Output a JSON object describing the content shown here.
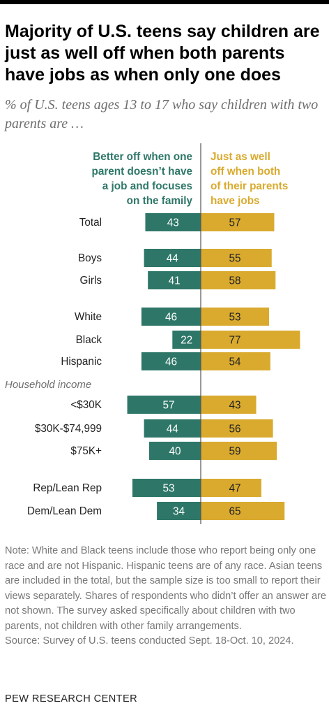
{
  "title": "Majority of U.S. teens say children are just as well off when both parents have jobs as when only one does",
  "subtitle": "% of U.S. teens ages 13 to 17 who say children with two parents are …",
  "chart_data": {
    "type": "bar",
    "orientation": "diverging-horizontal",
    "legend_left": [
      "Better off when one",
      "parent doesn’t have",
      "a job and focuses",
      "on the family"
    ],
    "legend_right": [
      "Just as well",
      "off when both",
      "of their parents",
      "have jobs"
    ],
    "group_labels": [
      "",
      "",
      "",
      "Household income",
      ""
    ],
    "categories": [
      "Total",
      "Boys",
      "Girls",
      "White",
      "Black",
      "Hispanic",
      "<$30K",
      "$30K-$74,999",
      "$75K+",
      "Rep/Lean Rep",
      "Dem/Lean Dem"
    ],
    "series": [
      {
        "name": "Better off when one parent doesn’t have a job and focuses on the family",
        "color": "#2e7768",
        "values": [
          43,
          44,
          41,
          46,
          22,
          46,
          57,
          44,
          40,
          53,
          34
        ]
      },
      {
        "name": "Just as well off when both of their parents have jobs",
        "color": "#d9aa2e",
        "values": [
          57,
          55,
          58,
          53,
          77,
          54,
          43,
          56,
          59,
          47,
          65
        ]
      }
    ]
  },
  "notes": "Note: White and Black teens include those who report being only one race and are not Hispanic. Hispanic teens are of any race. Asian teens are included in the total, but the sample size is too small to report their views separately. Shares of respondents who didn’t offer an answer are not shown. The survey asked specifically about children with two parents, not children with other family arrangements.",
  "source": "Source: Survey of U.S. teens conducted Sept. 18-Oct. 10, 2024.",
  "footer": "PEW RESEARCH CENTER"
}
